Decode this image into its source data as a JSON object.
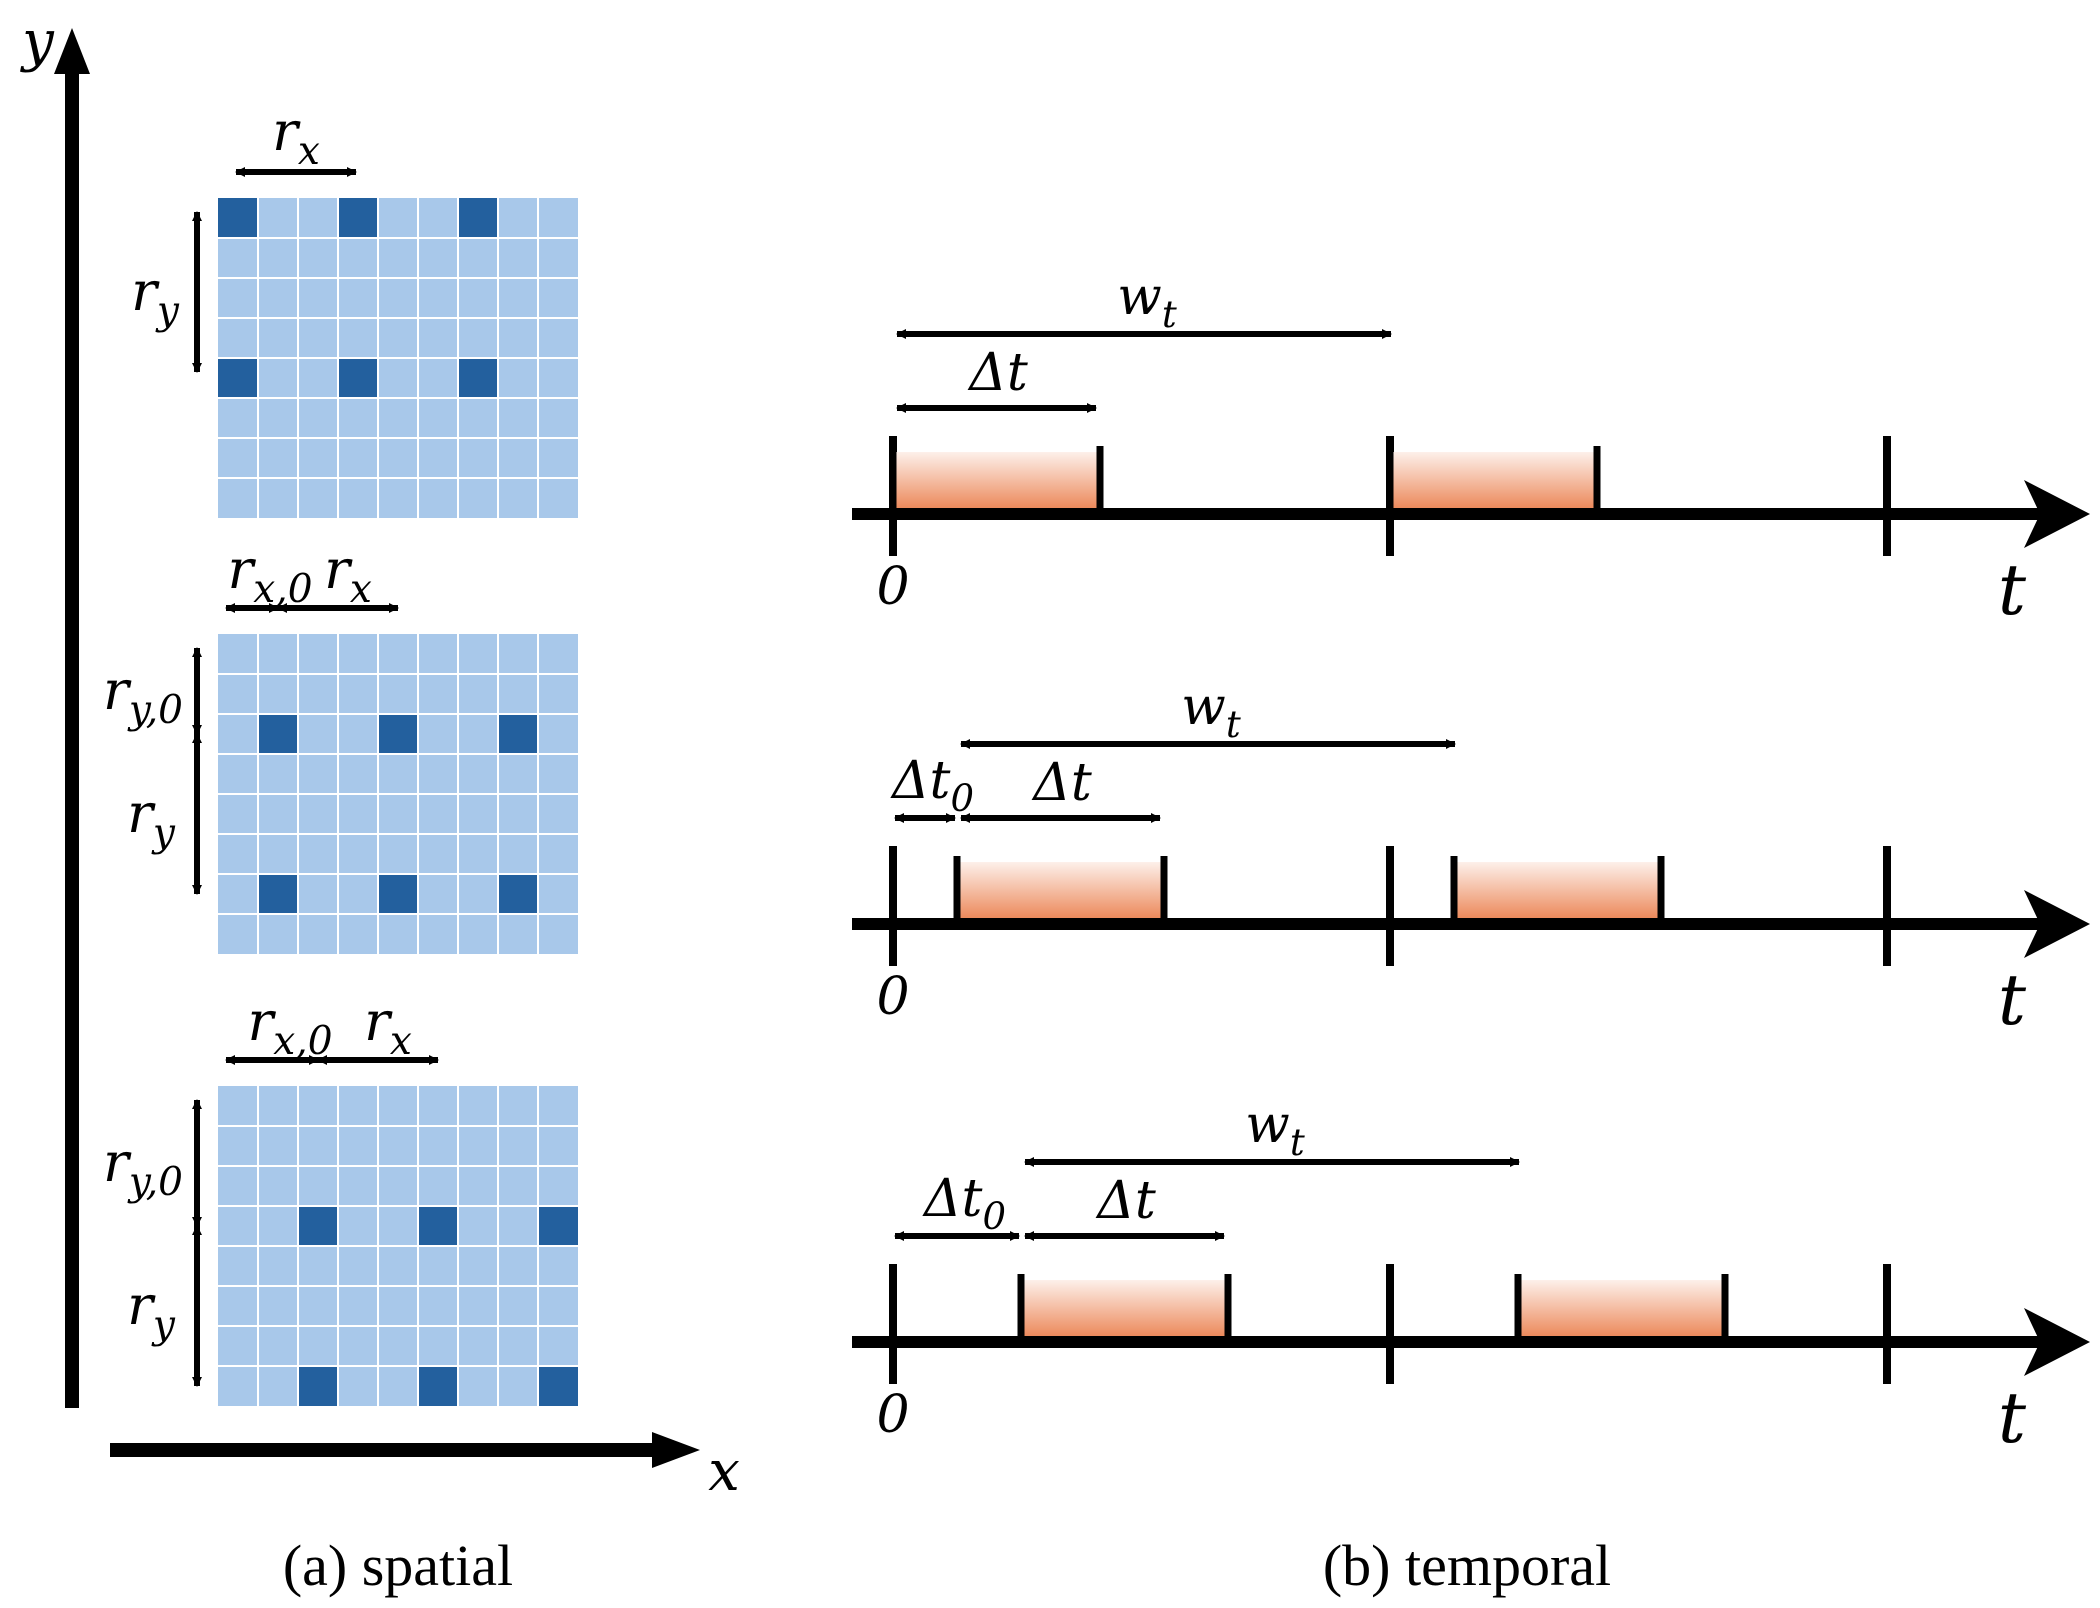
{
  "captions": {
    "spatial": "(a) spatial",
    "temporal": "(b) temporal"
  },
  "spatial": {
    "axis_x_label": "x",
    "axis_y_label": "y",
    "grid_size": 9,
    "panels": [
      {
        "label_rx": "r",
        "label_rx_sub": "x",
        "label_ry": "r",
        "label_ry_sub": "y",
        "active_cols": [
          0,
          3,
          6
        ],
        "active_rows": [
          0,
          4
        ],
        "has_offset": false
      },
      {
        "label_rx0": "r",
        "label_rx0_sub": "x,0",
        "label_rx": "r",
        "label_rx_sub": "x",
        "label_ry0": "r",
        "label_ry0_sub": "y,0",
        "label_ry": "r",
        "label_ry_sub": "y",
        "active_cols": [
          1,
          4,
          7
        ],
        "active_rows": [
          2,
          6
        ],
        "has_offset": true
      },
      {
        "label_rx0": "r",
        "label_rx0_sub": "x,0",
        "label_rx": "r",
        "label_rx_sub": "x",
        "label_ry0": "r",
        "label_ry0_sub": "y,0",
        "label_ry": "r",
        "label_ry_sub": "y",
        "active_cols": [
          2,
          5,
          8
        ],
        "active_rows": [
          3,
          7
        ],
        "has_offset": true
      }
    ]
  },
  "temporal": {
    "t_label": "t",
    "zero_label": "0",
    "rows": [
      {
        "w_label": "w",
        "w_sub": "t",
        "dt_label": "Δt",
        "dt0_label": "",
        "dt0_sub": "",
        "offset": 0
      },
      {
        "w_label": "w",
        "w_sub": "t",
        "dt_label": "Δt",
        "dt0_label": "Δt",
        "dt0_sub": "0",
        "offset": 1
      },
      {
        "w_label": "w",
        "w_sub": "t",
        "dt_label": "Δt",
        "dt0_label": "Δt",
        "dt0_sub": "0",
        "offset": 2
      }
    ]
  },
  "colors": {
    "cell_light": "#a8c8ea",
    "cell_dark": "#23609e",
    "grid_line": "#ffffff",
    "window_top": "#fdf0ea",
    "window_bottom": "#ec8a5c",
    "ink": "#000000"
  }
}
